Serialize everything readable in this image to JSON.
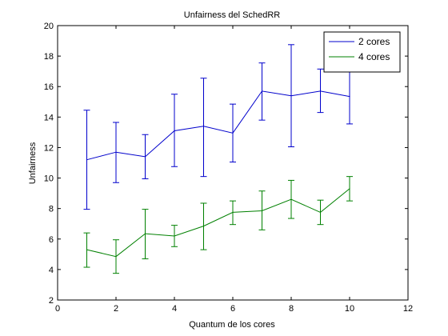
{
  "chart_data": {
    "type": "line",
    "title": "Unfairness del SchedRR",
    "xlabel": "Quantum de los cores",
    "ylabel": "Unfairness",
    "xlim": [
      0,
      12
    ],
    "ylim": [
      2,
      20
    ],
    "xticks": [
      0,
      2,
      4,
      6,
      8,
      10,
      12
    ],
    "yticks": [
      2,
      4,
      6,
      8,
      10,
      12,
      14,
      16,
      18,
      20
    ],
    "grid": false,
    "legend_position": "top-right",
    "x": [
      1,
      2,
      3,
      4,
      5,
      6,
      7,
      8,
      9,
      10
    ],
    "series": [
      {
        "name": "2 cores",
        "color": "#0000cc",
        "values": [
          11.2,
          11.7,
          11.4,
          13.1,
          13.4,
          12.95,
          15.7,
          15.4,
          15.7,
          15.35
        ],
        "err_low": [
          7.95,
          9.7,
          9.95,
          10.75,
          10.1,
          11.05,
          13.8,
          12.05,
          14.3,
          13.55
        ],
        "err_high": [
          14.45,
          13.65,
          12.85,
          15.5,
          16.55,
          14.85,
          17.55,
          18.75,
          17.15,
          17.1
        ]
      },
      {
        "name": "4 cores",
        "color": "#008000",
        "values": [
          5.3,
          4.85,
          6.35,
          6.2,
          6.85,
          7.75,
          7.85,
          8.6,
          7.75,
          9.3
        ],
        "err_low": [
          4.15,
          3.75,
          4.7,
          5.5,
          5.3,
          6.95,
          6.6,
          7.35,
          6.95,
          8.5
        ],
        "err_high": [
          6.4,
          5.95,
          7.95,
          6.9,
          8.35,
          8.5,
          9.15,
          9.85,
          8.55,
          10.1
        ]
      }
    ]
  }
}
